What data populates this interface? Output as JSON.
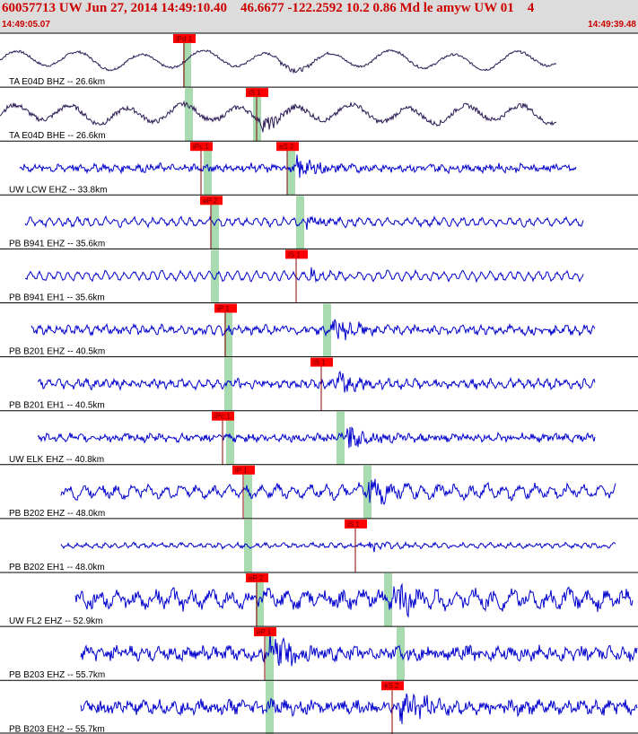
{
  "header": {
    "title": "60057713 UW Jun 27, 2014 14:49:10.40    46.6677 -122.2592 10.2 0.86 Md le amyw UW 01    4",
    "start_time": "14:49:05.07",
    "end_time": "14:49:39.48"
  },
  "colors": {
    "header_bg": "#dcdcdc",
    "header_text": "#cc0000",
    "trace_primary": "#0000cc",
    "trace_secondary": "#2b1a55",
    "pick_flag": "#ff0000",
    "pick_window": "#a8dcb0"
  },
  "traces": [
    {
      "label": "TA E04D BHZ -- 26.6km",
      "color_role": "secondary",
      "picks": [
        {
          "text": "iPd 1",
          "x": 193
        }
      ],
      "windows": [
        204
      ],
      "start": 0,
      "end": 620,
      "amp": 0.26,
      "noise": 0.04,
      "freq": 0.09,
      "burst_x": 312
    },
    {
      "label": "TA E04D BHE -- 26.6km",
      "color_role": "secondary",
      "picks": [
        {
          "text": "iS 1",
          "x": 274
        }
      ],
      "windows": [
        206,
        282
      ],
      "start": 0,
      "end": 620,
      "amp": 0.26,
      "noise": 0.08,
      "freq": 0.1,
      "burst_x": 290
    },
    {
      "label": "UW LCW EHZ -- 33.8km",
      "color_role": "primary",
      "picks": [
        {
          "text": "iPc 1",
          "x": 212
        },
        {
          "text": "eS 2",
          "x": 308
        }
      ],
      "windows": [
        227,
        320
      ],
      "start": 22,
      "end": 642,
      "amp": 0.06,
      "noise": 0.1,
      "freq": 0.5,
      "burst_x": 330
    },
    {
      "label": "PB B941 EHZ -- 35.6km",
      "color_role": "primary",
      "picks": [
        {
          "text": "eP 2",
          "x": 223
        }
      ],
      "windows": [
        235,
        330
      ],
      "start": 28,
      "end": 650,
      "amp": 0.1,
      "noise": 0.06,
      "freq": 0.6,
      "burst_x": 340
    },
    {
      "label": "PB B941 EH1 -- 35.6km",
      "color_role": "primary",
      "picks": [
        {
          "text": "iS 1",
          "x": 318
        }
      ],
      "windows": [
        235
      ],
      "start": 28,
      "end": 650,
      "amp": 0.12,
      "noise": 0.05,
      "freq": 0.6,
      "burst_x": 340
    },
    {
      "label": "PB B201 EHZ -- 40.5km",
      "color_role": "primary",
      "picks": [
        {
          "text": "iP 1",
          "x": 239
        }
      ],
      "windows": [
        250,
        360
      ],
      "start": 35,
      "end": 663,
      "amp": 0.09,
      "noise": 0.1,
      "freq": 0.6,
      "burst_x": 370
    },
    {
      "label": "PB B201 EH1 -- 40.5km",
      "color_role": "primary",
      "picks": [
        {
          "text": "iS 1",
          "x": 346
        }
      ],
      "windows": [
        250
      ],
      "start": 42,
      "end": 663,
      "amp": 0.09,
      "noise": 0.1,
      "freq": 0.6,
      "burst_x": 375
    },
    {
      "label": "UW ELK EHZ -- 40.8km",
      "color_role": "primary",
      "picks": [
        {
          "text": "iPc 1",
          "x": 236
        }
      ],
      "windows": [
        252,
        375
      ],
      "start": 42,
      "end": 663,
      "amp": 0.06,
      "noise": 0.1,
      "freq": 0.5,
      "burst_x": 385
    },
    {
      "label": "PB B202 EHZ -- 48.0km",
      "color_role": "primary",
      "picks": [
        {
          "text": "iP 1",
          "x": 259
        }
      ],
      "windows": [
        272,
        405
      ],
      "start": 68,
      "end": 686,
      "amp": 0.15,
      "noise": 0.12,
      "freq": 0.35,
      "burst_x": 410
    },
    {
      "label": "PB B202 EH1 -- 48.0km",
      "color_role": "primary",
      "picks": [
        {
          "text": "iS 1",
          "x": 384
        }
      ],
      "windows": [
        272
      ],
      "start": 68,
      "end": 686,
      "amp": 0.05,
      "noise": 0.05,
      "freq": 0.6,
      "burst_x": 410
    },
    {
      "label": "UW FL2 EHZ -- 52.9km",
      "color_role": "primary",
      "picks": [
        {
          "text": "eP 2",
          "x": 274
        }
      ],
      "windows": [
        285,
        428
      ],
      "start": 84,
      "end": 705,
      "amp": 0.18,
      "noise": 0.2,
      "freq": 0.3,
      "burst_x": 435
    },
    {
      "label": "PB B203 EHZ -- 55.7km",
      "color_role": "primary",
      "picks": [
        {
          "text": "eP 1",
          "x": 283
        }
      ],
      "windows": [
        296,
        442
      ],
      "start": 90,
      "end": 710,
      "amp": 0.1,
      "noise": 0.18,
      "freq": 0.4,
      "burst_x": 300
    },
    {
      "label": "PB B203 EH2 -- 55.7km",
      "color_role": "primary",
      "picks": [
        {
          "text": "eS 2",
          "x": 425
        }
      ],
      "windows": [
        296
      ],
      "start": 90,
      "end": 710,
      "amp": 0.1,
      "noise": 0.18,
      "freq": 0.4,
      "burst_x": 445
    }
  ]
}
